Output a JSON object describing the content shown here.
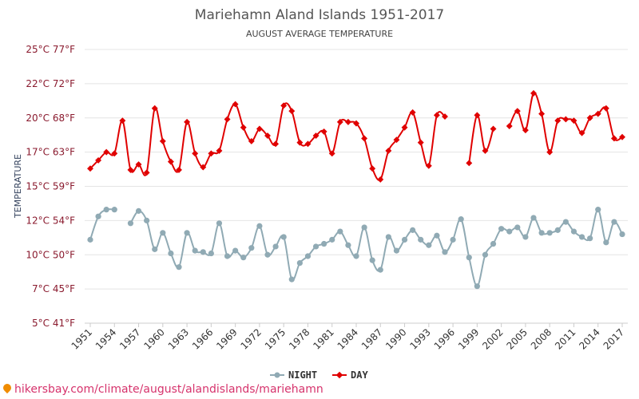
{
  "chart_data": {
    "type": "line",
    "title": "Mariehamn Aland Islands 1951-2017",
    "subtitle": "AUGUST AVERAGE TEMPERATURE",
    "ylabel": "TEMPERATURE",
    "ylim": [
      5,
      25
    ],
    "yticks": [
      {
        "value": 5,
        "label": "5°C 41°F"
      },
      {
        "value": 7.5,
        "label": "7°C 45°F"
      },
      {
        "value": 10,
        "label": "10°C 50°F"
      },
      {
        "value": 12.5,
        "label": "12°C 54°F"
      },
      {
        "value": 15,
        "label": "15°C 59°F"
      },
      {
        "value": 17.5,
        "label": "17°C 63°F"
      },
      {
        "value": 20,
        "label": "20°C 68°F"
      },
      {
        "value": 22.5,
        "label": "22°C 72°F"
      },
      {
        "value": 25,
        "label": "25°C 77°F"
      }
    ],
    "xlim": [
      1951,
      2017
    ],
    "xticks": [
      1951,
      1954,
      1957,
      1960,
      1963,
      1966,
      1969,
      1972,
      1975,
      1978,
      1981,
      1984,
      1987,
      1990,
      1993,
      1996,
      1999,
      2002,
      2005,
      2008,
      2011,
      2014,
      2017
    ],
    "grid": true,
    "legend_position": "bottom",
    "x": [
      1951,
      1952,
      1953,
      1954,
      1955,
      1956,
      1957,
      1958,
      1959,
      1960,
      1961,
      1962,
      1963,
      1964,
      1965,
      1966,
      1967,
      1968,
      1969,
      1970,
      1971,
      1972,
      1973,
      1974,
      1975,
      1976,
      1977,
      1978,
      1979,
      1980,
      1981,
      1982,
      1983,
      1984,
      1985,
      1986,
      1987,
      1988,
      1989,
      1990,
      1991,
      1992,
      1993,
      1994,
      1995,
      1996,
      1997,
      1998,
      1999,
      2000,
      2001,
      2002,
      2003,
      2004,
      2005,
      2006,
      2007,
      2008,
      2009,
      2010,
      2011,
      2012,
      2013,
      2014,
      2015,
      2016,
      2017
    ],
    "series": [
      {
        "name": "NIGHT",
        "color": "#90aab4",
        "values": [
          11.1,
          12.8,
          13.3,
          13.3,
          null,
          12.3,
          13.2,
          12.5,
          10.4,
          11.6,
          10.1,
          9.1,
          11.6,
          10.3,
          10.2,
          10.1,
          12.3,
          9.9,
          10.3,
          9.8,
          10.5,
          12.1,
          10.0,
          10.6,
          11.3,
          8.2,
          9.4,
          9.9,
          10.6,
          10.8,
          11.1,
          11.7,
          10.7,
          9.9,
          12.0,
          9.6,
          8.9,
          11.3,
          10.3,
          11.1,
          11.8,
          11.1,
          10.7,
          11.4,
          10.2,
          11.1,
          12.6,
          9.8,
          7.7,
          10.0,
          10.8,
          11.9,
          11.7,
          12.0,
          11.3,
          12.7,
          11.6,
          11.6,
          11.8,
          12.4,
          11.7,
          11.3,
          11.2,
          13.3,
          10.9,
          12.4,
          11.5
        ]
      },
      {
        "name": "DAY",
        "color": "#e00000",
        "values": [
          16.3,
          16.9,
          17.5,
          17.4,
          19.8,
          16.2,
          16.6,
          16.0,
          20.7,
          18.3,
          16.8,
          16.2,
          19.7,
          17.4,
          16.4,
          17.4,
          17.6,
          19.9,
          21.0,
          19.3,
          18.3,
          19.2,
          18.7,
          18.1,
          20.9,
          20.5,
          18.2,
          18.1,
          18.7,
          19.0,
          17.4,
          19.7,
          19.7,
          19.6,
          18.5,
          16.3,
          15.5,
          17.6,
          18.4,
          19.3,
          20.4,
          18.2,
          16.5,
          20.2,
          20.1,
          null,
          null,
          16.7,
          20.2,
          17.6,
          19.2,
          null,
          19.4,
          20.5,
          19.1,
          21.8,
          20.3,
          17.5,
          19.8,
          19.9,
          19.8,
          18.9,
          20.0,
          20.3,
          20.7,
          18.5,
          18.6
        ]
      }
    ]
  },
  "watermark": "hikersbay.com/climate/august/alandislands/mariehamn"
}
